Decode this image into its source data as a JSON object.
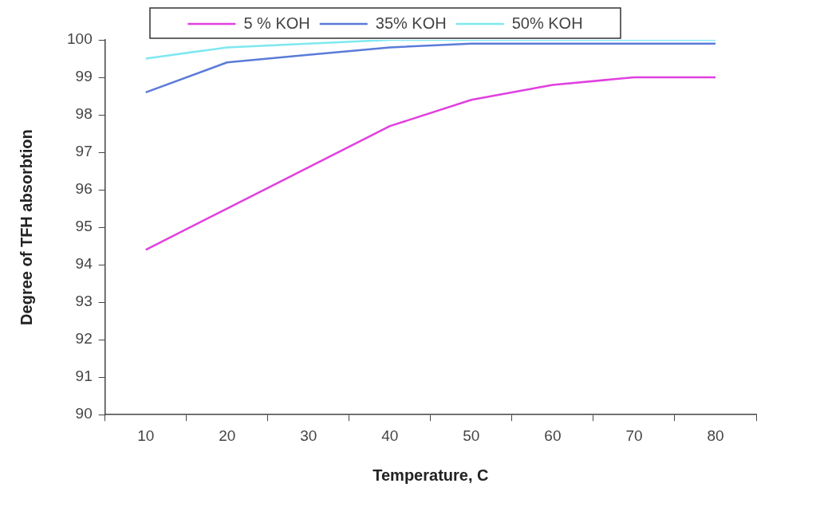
{
  "chart_data": {
    "type": "line",
    "xlabel": "Temperature, C",
    "ylabel": "Degree of TFH absorbtion",
    "categories": [
      "10",
      "20",
      "30",
      "40",
      "50",
      "60",
      "70",
      "80"
    ],
    "series": [
      {
        "name": "5 % KOH",
        "color": "#e040e0",
        "values": [
          94.4,
          95.5,
          96.6,
          97.7,
          98.4,
          98.8,
          99.0,
          99.0
        ]
      },
      {
        "name": "35% KOH",
        "color": "#5b7bd8",
        "values": [
          98.6,
          99.4,
          99.6,
          99.8,
          99.9,
          99.9,
          99.9,
          99.9
        ]
      },
      {
        "name": "50% KOH",
        "color": "#7fe8f0",
        "values": [
          99.5,
          99.8,
          99.9,
          100,
          100,
          100,
          100,
          100
        ]
      }
    ],
    "ylim": [
      90,
      100
    ],
    "yticks": [
      90,
      91,
      92,
      93,
      94,
      95,
      96,
      97,
      98,
      99,
      100
    ],
    "grid": false,
    "legend": "top",
    "marker": "none",
    "line_style": "solid"
  }
}
